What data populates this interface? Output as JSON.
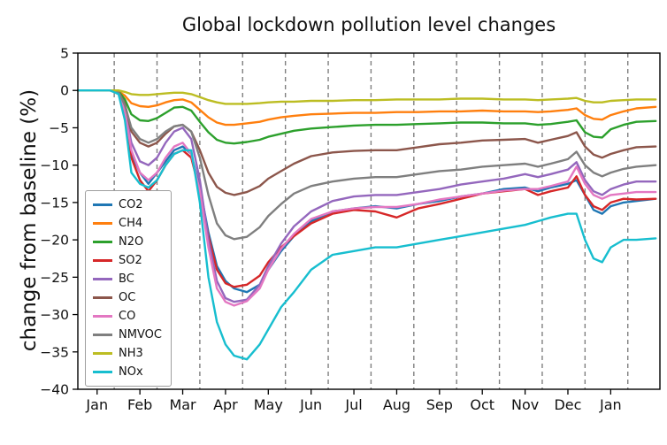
{
  "chart_data": {
    "type": "line",
    "title": "Global lockdown pollution level changes",
    "ylabel": "change from baseline (%)",
    "xlabel": "",
    "xlim": [
      -0.45,
      13.15
    ],
    "ylim": [
      -40,
      5
    ],
    "grid": "dashed-vertical",
    "grid_color": "#7f7f7f",
    "legend_position": "lower-left",
    "grid_x": [
      0.4,
      1.4,
      2.4,
      3.4,
      4.4,
      5.4,
      6.4,
      7.4,
      8.4,
      9.4,
      10.4,
      11.4,
      12.4
    ],
    "yticks": [
      {
        "value": 5,
        "label": "5"
      },
      {
        "value": 0,
        "label": "0"
      },
      {
        "value": -5,
        "label": "−5"
      },
      {
        "value": -10,
        "label": "−10"
      },
      {
        "value": -15,
        "label": "−15"
      },
      {
        "value": -20,
        "label": "−20"
      },
      {
        "value": -25,
        "label": "−25"
      },
      {
        "value": -30,
        "label": "−30"
      },
      {
        "value": -35,
        "label": "−35"
      },
      {
        "value": -40,
        "label": "−40"
      }
    ],
    "xticks": [
      {
        "value": 0,
        "label": "Jan"
      },
      {
        "value": 1,
        "label": "Feb"
      },
      {
        "value": 2,
        "label": "Mar"
      },
      {
        "value": 3,
        "label": "Apr"
      },
      {
        "value": 4,
        "label": "May"
      },
      {
        "value": 5,
        "label": "Jun"
      },
      {
        "value": 6,
        "label": "Jul"
      },
      {
        "value": 7,
        "label": "Aug"
      },
      {
        "value": 8,
        "label": "Sep"
      },
      {
        "value": 9,
        "label": "Oct"
      },
      {
        "value": 10,
        "label": "Nov"
      },
      {
        "value": 11,
        "label": "Dec"
      },
      {
        "value": 12,
        "label": "Jan"
      }
    ],
    "x": [
      -0.45,
      0.3,
      0.5,
      0.65,
      0.8,
      1.0,
      1.2,
      1.4,
      1.6,
      1.8,
      2.0,
      2.2,
      2.4,
      2.6,
      2.8,
      3.0,
      3.2,
      3.5,
      3.8,
      4.0,
      4.3,
      4.6,
      5.0,
      5.5,
      6.0,
      6.5,
      7.0,
      7.5,
      8.0,
      8.5,
      9.0,
      9.5,
      10.0,
      10.3,
      10.6,
      11.0,
      11.2,
      11.4,
      11.6,
      11.8,
      12.0,
      12.3,
      12.6,
      13.05
    ],
    "series": [
      {
        "name": "CO2",
        "color": "#1f77b4",
        "values": [
          0,
          0,
          -0.3,
          -3,
          -8.5,
          -11,
          -12.5,
          -11,
          -9.5,
          -8,
          -7.5,
          -8.5,
          -13,
          -19,
          -23.5,
          -25.5,
          -26.5,
          -27,
          -26,
          -24,
          -21.5,
          -19.5,
          -17.5,
          -16.2,
          -15.8,
          -15.5,
          -15.8,
          -15.2,
          -14.8,
          -14.2,
          -13.8,
          -13.2,
          -13.0,
          -13.5,
          -13.0,
          -12.5,
          -12.0,
          -14,
          -16,
          -16.5,
          -15.5,
          -15,
          -14.8,
          -14.5
        ]
      },
      {
        "name": "CH4",
        "color": "#ff7f0e",
        "values": [
          0,
          0,
          -0.1,
          -0.7,
          -1.7,
          -2.1,
          -2.2,
          -2.0,
          -1.6,
          -1.3,
          -1.2,
          -1.6,
          -2.6,
          -3.6,
          -4.3,
          -4.6,
          -4.6,
          -4.4,
          -4.2,
          -3.9,
          -3.6,
          -3.4,
          -3.2,
          -3.1,
          -3.0,
          -3.0,
          -2.9,
          -2.9,
          -2.8,
          -2.8,
          -2.7,
          -2.8,
          -2.8,
          -2.9,
          -2.8,
          -2.6,
          -2.4,
          -3.3,
          -3.8,
          -3.9,
          -3.3,
          -2.8,
          -2.4,
          -2.2
        ]
      },
      {
        "name": "N2O",
        "color": "#2ca02c",
        "values": [
          0,
          0,
          -0.1,
          -1.2,
          -3.2,
          -4,
          -4.1,
          -3.7,
          -3,
          -2.3,
          -2.2,
          -2.7,
          -4.2,
          -5.6,
          -6.6,
          -7.0,
          -7.1,
          -6.9,
          -6.6,
          -6.2,
          -5.8,
          -5.4,
          -5.1,
          -4.9,
          -4.7,
          -4.6,
          -4.6,
          -4.5,
          -4.4,
          -4.3,
          -4.3,
          -4.4,
          -4.4,
          -4.6,
          -4.5,
          -4.2,
          -4.0,
          -5.6,
          -6.2,
          -6.3,
          -5.2,
          -4.6,
          -4.2,
          -4.1
        ]
      },
      {
        "name": "SO2",
        "color": "#d62728",
        "values": [
          0,
          0,
          -0.3,
          -3.5,
          -9,
          -12,
          -13.5,
          -12,
          -10,
          -8.5,
          -8,
          -9,
          -13.5,
          -19.5,
          -24,
          -25.8,
          -26.3,
          -26,
          -24.8,
          -23,
          -21,
          -19.5,
          -17.8,
          -16.5,
          -16,
          -16.2,
          -17,
          -15.8,
          -15.2,
          -14.5,
          -13.8,
          -13.5,
          -13.2,
          -14,
          -13.5,
          -13,
          -11.5,
          -14,
          -15.5,
          -16,
          -15,
          -14.5,
          -14.6,
          -14.5
        ]
      },
      {
        "name": "BC",
        "color": "#9467bd",
        "values": [
          0,
          0,
          -0.3,
          -2.5,
          -7,
          -9.5,
          -10,
          -9,
          -7,
          -5.5,
          -5,
          -6.5,
          -12,
          -20,
          -25.5,
          -27.8,
          -28.3,
          -28,
          -26,
          -23.5,
          -20.5,
          -18.2,
          -16.2,
          -14.8,
          -14.2,
          -14,
          -14,
          -13.6,
          -13.2,
          -12.6,
          -12.2,
          -11.8,
          -11.2,
          -11.6,
          -11.2,
          -10.6,
          -9.6,
          -12,
          -13.5,
          -14,
          -13.2,
          -12.6,
          -12.2,
          -12.2
        ]
      },
      {
        "name": "OC",
        "color": "#8c564b",
        "values": [
          0,
          0,
          -0.2,
          -1.8,
          -5.5,
          -7,
          -7.5,
          -7,
          -5.8,
          -4.8,
          -4.6,
          -5.5,
          -8,
          -11,
          -12.9,
          -13.7,
          -14,
          -13.6,
          -12.8,
          -11.8,
          -10.8,
          -9.8,
          -8.8,
          -8.3,
          -8.1,
          -8.0,
          -8.0,
          -7.6,
          -7.2,
          -7.0,
          -6.7,
          -6.6,
          -6.5,
          -7.0,
          -6.6,
          -6.1,
          -5.6,
          -7.5,
          -8.6,
          -9.0,
          -8.5,
          -8.0,
          -7.6,
          -7.5
        ]
      },
      {
        "name": "CO",
        "color": "#e377c2",
        "values": [
          0,
          0,
          -0.3,
          -2.8,
          -8,
          -11,
          -12,
          -11,
          -9,
          -7.5,
          -7,
          -8.5,
          -13.5,
          -21,
          -26.5,
          -28.3,
          -28.8,
          -28.2,
          -26.5,
          -24,
          -21.2,
          -19.2,
          -17.2,
          -16.2,
          -15.8,
          -15.6,
          -15.6,
          -15.2,
          -14.6,
          -14.2,
          -13.8,
          -13.4,
          -13.2,
          -13.2,
          -12.8,
          -12.2,
          -10.2,
          -12.5,
          -14,
          -14.5,
          -14,
          -13.8,
          -13.6,
          -13.6
        ]
      },
      {
        "name": "NMVOC",
        "color": "#7f7f7f",
        "values": [
          0,
          0,
          -0.2,
          -2,
          -5,
          -6.5,
          -7,
          -6.5,
          -5.5,
          -4.8,
          -4.6,
          -5.5,
          -9,
          -14,
          -17.8,
          -19.4,
          -19.9,
          -19.6,
          -18.3,
          -16.8,
          -15.2,
          -13.8,
          -12.8,
          -12.2,
          -11.8,
          -11.6,
          -11.6,
          -11.2,
          -10.8,
          -10.6,
          -10.2,
          -10.0,
          -9.8,
          -10.2,
          -9.8,
          -9.2,
          -8.2,
          -10,
          -11,
          -11.5,
          -11,
          -10.5,
          -10.2,
          -10
        ]
      },
      {
        "name": "NH3",
        "color": "#bcbd22",
        "values": [
          0,
          0,
          0,
          -0.2,
          -0.5,
          -0.6,
          -0.6,
          -0.5,
          -0.4,
          -0.3,
          -0.3,
          -0.5,
          -0.9,
          -1.3,
          -1.6,
          -1.8,
          -1.8,
          -1.8,
          -1.7,
          -1.6,
          -1.5,
          -1.5,
          -1.4,
          -1.4,
          -1.3,
          -1.3,
          -1.2,
          -1.2,
          -1.2,
          -1.1,
          -1.1,
          -1.2,
          -1.2,
          -1.3,
          -1.2,
          -1.1,
          -1.0,
          -1.4,
          -1.6,
          -1.6,
          -1.4,
          -1.3,
          -1.2,
          -1.2
        ]
      },
      {
        "name": "NOx",
        "color": "#17becf",
        "values": [
          0,
          0,
          -0.5,
          -4,
          -11,
          -12.5,
          -13,
          -12,
          -10,
          -8.5,
          -8,
          -8,
          -15,
          -25,
          -31,
          -34,
          -35.5,
          -36,
          -34,
          -32,
          -29,
          -27,
          -24,
          -22,
          -21.5,
          -21,
          -21,
          -20.5,
          -20,
          -19.5,
          -19,
          -18.5,
          -18,
          -17.5,
          -17,
          -16.5,
          -16.5,
          -20,
          -22.5,
          -23,
          -21,
          -20,
          -20,
          -19.8
        ]
      }
    ]
  }
}
